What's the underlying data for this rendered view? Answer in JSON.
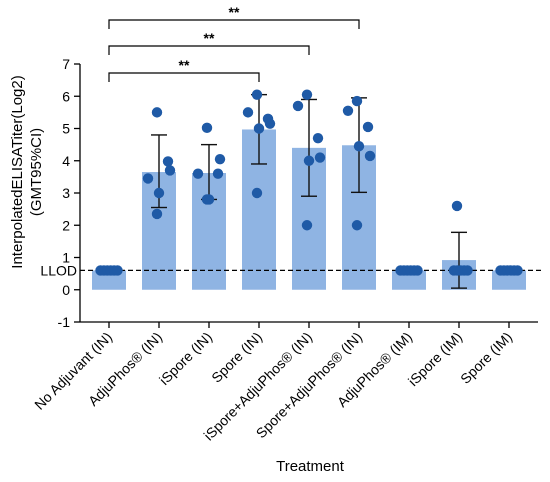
{
  "chart_data": {
    "type": "bar",
    "xlabel": "Treatment",
    "ylabel": "InterpolatedELISATiter(Log2)",
    "ylabel2": "(GMT95%CI)",
    "ylim": [
      -1,
      7
    ],
    "yticks": [
      -1,
      0,
      1,
      2,
      3,
      4,
      5,
      6,
      7
    ],
    "grid": false,
    "categories": [
      "No Adjuvant (IN)",
      "AdjuPhos® (IN)",
      "iSpore (IN)",
      "Spore (IN)",
      "iSpore+AdjuPhos® (IN)",
      "Spore+AdjuPhos® (IN)",
      "AdjuPhos® (IM)",
      "iSpore (IM)",
      "Spore (IM)"
    ],
    "values": [
      0.6,
      3.65,
      3.62,
      4.97,
      4.4,
      4.48,
      0.6,
      0.92,
      0.6
    ],
    "error_low": [
      0.6,
      2.55,
      2.8,
      3.9,
      2.9,
      3.02,
      0.6,
      0.05,
      0.6
    ],
    "error_high": [
      0.6,
      4.8,
      4.5,
      6.05,
      5.9,
      5.95,
      0.6,
      1.78,
      0.6
    ],
    "points": [
      [
        0.6,
        0.6,
        0.6,
        0.6,
        0.6,
        0.6
      ],
      [
        5.5,
        3.45,
        3.98,
        3.7,
        3.0,
        2.35
      ],
      [
        5.02,
        3.6,
        3.6,
        4.05,
        2.8,
        2.8
      ],
      [
        6.05,
        5.5,
        5.3,
        5.15,
        5.0,
        3.0
      ],
      [
        6.05,
        5.7,
        4.7,
        4.1,
        4.0,
        2.0
      ],
      [
        5.85,
        5.55,
        5.05,
        4.15,
        4.45,
        2.0
      ],
      [
        0.6,
        0.6,
        0.6,
        0.6,
        0.6,
        0.6
      ],
      [
        2.6,
        0.6,
        0.6,
        0.6,
        0.6,
        0.6
      ],
      [
        0.6,
        0.6,
        0.6,
        0.6,
        0.6,
        0.6
      ]
    ],
    "lod": {
      "label": "LLOD",
      "value": 0.6
    },
    "significance": [
      {
        "from": 0,
        "to": 3,
        "label": "**"
      },
      {
        "from": 0,
        "to": 4,
        "label": "**"
      },
      {
        "from": 0,
        "to": 5,
        "label": "**"
      }
    ],
    "colors": {
      "bar": "#8fb4e3",
      "point": "#1f5aa6",
      "error": "#111111"
    }
  }
}
